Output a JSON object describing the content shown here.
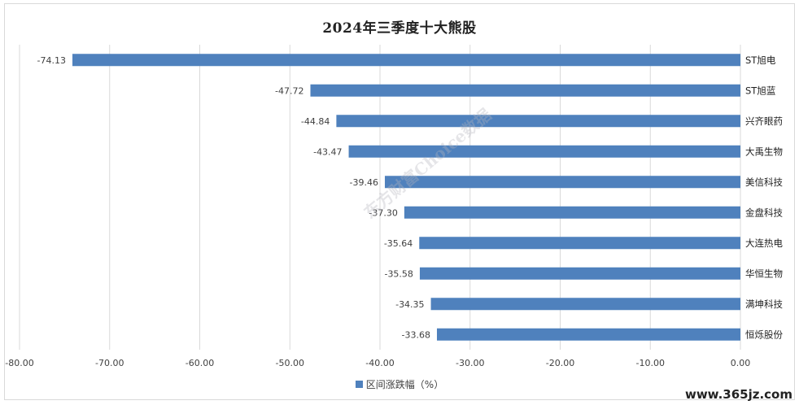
{
  "chart_data": {
    "type": "bar",
    "orientation": "horizontal",
    "title": "2024年三季度十大熊股",
    "categories": [
      "ST旭电",
      "ST旭蓝",
      "兴齐眼药",
      "大禹生物",
      "美信科技",
      "金盘科技",
      "大连热电",
      "华恒生物",
      "满坤科技",
      "恒烁股份"
    ],
    "series": [
      {
        "name": "区间涨跌幅（%）",
        "values": [
          -74.13,
          -47.72,
          -44.84,
          -43.47,
          -39.46,
          -37.3,
          -35.64,
          -35.58,
          -34.35,
          -33.68
        ]
      }
    ],
    "value_labels": [
      "-74.13",
      "-47.72",
      "-44.84",
      "-43.47",
      "-39.46",
      "-37.30",
      "-35.64",
      "-35.58",
      "-34.35",
      "-33.68"
    ],
    "x_ticks": [
      -80,
      -70,
      -60,
      -50,
      -40,
      -30,
      -20,
      -10,
      0
    ],
    "x_tick_labels": [
      "-80.00",
      "-70.00",
      "-60.00",
      "-50.00",
      "-40.00",
      "-30.00",
      "-20.00",
      "-10.00",
      "0.00"
    ],
    "xlim": [
      -80,
      0
    ],
    "grid": true,
    "legend_position": "bottom",
    "bar_color": "#4f81bd"
  },
  "watermark": "东方财富Choice数据",
  "site_mark": "www.365jz.com"
}
